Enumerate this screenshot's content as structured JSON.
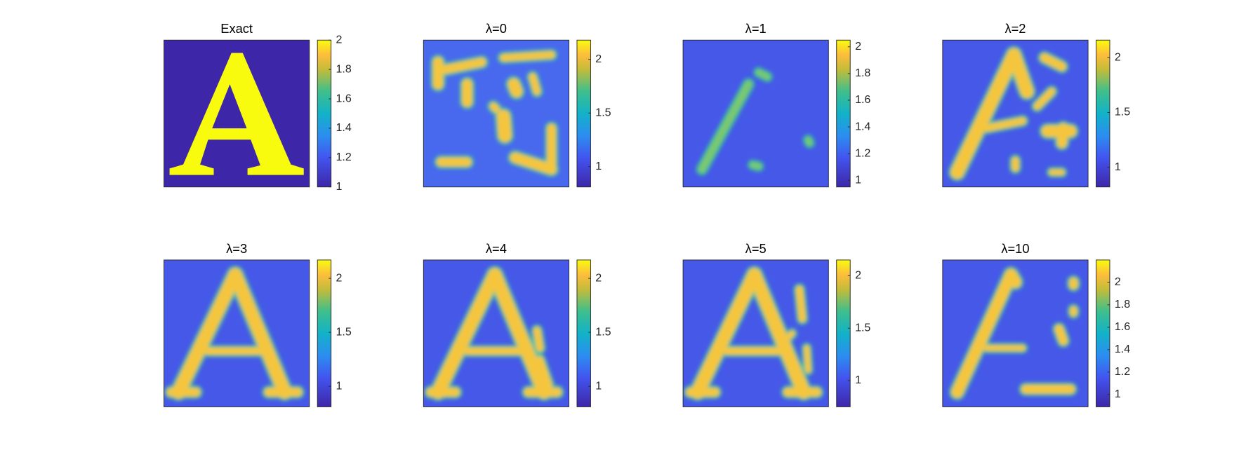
{
  "chart_data": [
    {
      "type": "heatmap",
      "title": "Exact",
      "clim": [
        1,
        2
      ],
      "cticks": [
        1,
        1.2,
        1.4,
        1.6,
        1.8,
        2
      ]
    },
    {
      "type": "heatmap",
      "title": "λ=0",
      "clim": [
        0.81,
        2.18
      ],
      "cticks": [
        1,
        1.5,
        2
      ]
    },
    {
      "type": "heatmap",
      "title": "λ=1",
      "clim": [
        0.95,
        2.05
      ],
      "cticks": [
        1,
        1.2,
        1.4,
        1.6,
        1.8,
        2
      ]
    },
    {
      "type": "heatmap",
      "title": "λ=2",
      "clim": [
        0.82,
        2.16
      ],
      "cticks": [
        1,
        1.5,
        2
      ]
    },
    {
      "type": "heatmap",
      "title": "λ=3",
      "clim": [
        0.81,
        2.17
      ],
      "cticks": [
        1,
        1.5,
        2
      ]
    },
    {
      "type": "heatmap",
      "title": "λ=4",
      "clim": [
        0.81,
        2.17
      ],
      "cticks": [
        1,
        1.5,
        2
      ]
    },
    {
      "type": "heatmap",
      "title": "λ=5",
      "clim": [
        0.75,
        2.15
      ],
      "cticks": [
        1,
        1.5,
        2
      ]
    },
    {
      "type": "heatmap",
      "title": "λ=10",
      "clim": [
        0.89,
        2.2
      ],
      "cticks": [
        1,
        1.2,
        1.4,
        1.6,
        1.8,
        2
      ]
    }
  ]
}
